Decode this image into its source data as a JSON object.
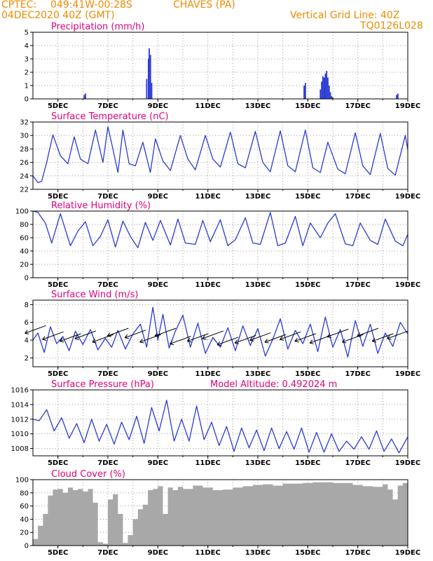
{
  "header": {
    "source": "CPTEC:",
    "coords": "049:41W-00:28S",
    "station": "CHAVES (PA)",
    "init": "04DEC2020 40Z (GMT)",
    "vertical_grid": "Vertical Grid Line: 40Z",
    "code": "TQ0126L028"
  },
  "colors": {
    "header": "#ee8a00",
    "title": "#e0007a",
    "line": "#2a3bd6",
    "cloud": "#a8a8a8",
    "grid": "#9a9a9a"
  },
  "x_axis": {
    "start_day": 4,
    "end_day": 19,
    "tick_labels": [
      "5DEC",
      "7DEC",
      "9DEC",
      "11DEC",
      "13DEC",
      "15DEC",
      "17DEC",
      "19DEC"
    ],
    "tick_days": [
      5,
      7,
      9,
      11,
      13,
      15,
      17,
      19
    ]
  },
  "chart_data": [
    {
      "id": "precip",
      "type": "bar",
      "title": "Precipitation (mm/h)",
      "annotation": "",
      "ylim": [
        0,
        5
      ],
      "yticks": [
        0,
        1,
        2,
        3,
        4,
        5
      ],
      "x": [
        6.05,
        6.1,
        8.55,
        8.62,
        8.65,
        8.7,
        8.75,
        14.85,
        14.9,
        15.5,
        15.55,
        15.6,
        15.65,
        15.7,
        15.75,
        15.8,
        15.85,
        15.9,
        15.95,
        16.0,
        18.55,
        18.6
      ],
      "values": [
        0.3,
        0.4,
        1.5,
        3.0,
        3.8,
        3.3,
        1.2,
        1.0,
        1.2,
        0.7,
        1.3,
        1.7,
        1.6,
        1.9,
        2.1,
        1.6,
        1.0,
        0.5,
        0.2,
        0.1,
        0.3,
        0.4
      ]
    },
    {
      "id": "temp",
      "type": "line",
      "title": "Surface Temperature (nC)",
      "annotation": "",
      "ylim": [
        22,
        32
      ],
      "yticks": [
        22,
        24,
        26,
        28,
        30,
        32
      ],
      "x": [
        4.0,
        4.2,
        4.35,
        4.55,
        4.8,
        5.1,
        5.4,
        5.65,
        5.9,
        6.2,
        6.5,
        6.8,
        7.0,
        7.2,
        7.4,
        7.6,
        7.85,
        8.1,
        8.4,
        8.7,
        8.9,
        9.2,
        9.5,
        9.9,
        10.2,
        10.5,
        10.9,
        11.2,
        11.5,
        11.9,
        12.2,
        12.5,
        12.9,
        13.2,
        13.5,
        13.9,
        14.2,
        14.5,
        14.9,
        15.2,
        15.5,
        15.8,
        16.2,
        16.5,
        16.9,
        17.2,
        17.5,
        17.9,
        18.2,
        18.5,
        18.9,
        19.0
      ],
      "values": [
        24.0,
        23.0,
        23.2,
        26.0,
        30.1,
        27.0,
        25.8,
        29.8,
        26.5,
        25.8,
        30.8,
        26.0,
        31.3,
        28.0,
        24.5,
        30.8,
        25.8,
        25.5,
        29.0,
        24.5,
        29.5,
        26.2,
        24.8,
        30.0,
        26.5,
        24.9,
        30.0,
        26.5,
        25.3,
        30.5,
        25.8,
        25.2,
        30.6,
        26.0,
        24.6,
        30.7,
        25.5,
        24.6,
        30.8,
        25.2,
        24.5,
        29.0,
        25.0,
        24.3,
        30.4,
        25.5,
        24.2,
        30.3,
        25.1,
        24.1,
        30.0,
        27.9
      ]
    },
    {
      "id": "rh",
      "type": "line",
      "title": "Relative Humidity (%)",
      "annotation": "",
      "ylim": [
        0,
        100
      ],
      "yticks": [
        0,
        20,
        40,
        60,
        80,
        100
      ],
      "x": [
        4.0,
        4.2,
        4.5,
        4.75,
        5.1,
        5.5,
        5.8,
        6.1,
        6.4,
        6.7,
        7.0,
        7.3,
        7.6,
        7.9,
        8.2,
        8.5,
        8.8,
        9.1,
        9.5,
        9.8,
        10.1,
        10.5,
        10.8,
        11.1,
        11.5,
        11.8,
        12.1,
        12.5,
        12.8,
        13.1,
        13.5,
        13.8,
        14.1,
        14.5,
        14.8,
        15.1,
        15.5,
        15.8,
        16.1,
        16.5,
        16.8,
        17.1,
        17.5,
        17.8,
        18.1,
        18.5,
        18.8,
        19.0
      ],
      "values": [
        100,
        98,
        82,
        52,
        96,
        48,
        70,
        84,
        48,
        62,
        87,
        46,
        85,
        62,
        45,
        83,
        56,
        86,
        49,
        88,
        52,
        50,
        86,
        54,
        87,
        48,
        57,
        90,
        52,
        50,
        98,
        48,
        52,
        92,
        48,
        82,
        60,
        82,
        96,
        51,
        48,
        82,
        56,
        50,
        88,
        55,
        48,
        65
      ]
    },
    {
      "id": "wind",
      "type": "line",
      "title": "Surface Wind (m/s)",
      "annotation": "",
      "ylim": [
        1,
        8.5
      ],
      "yticks": [
        2,
        4,
        6,
        8
      ],
      "x": [
        4.0,
        4.2,
        4.45,
        4.7,
        4.95,
        5.2,
        5.45,
        5.7,
        6.0,
        6.3,
        6.6,
        6.9,
        7.15,
        7.4,
        7.7,
        8.0,
        8.3,
        8.55,
        8.8,
        9.0,
        9.2,
        9.45,
        9.7,
        10.0,
        10.3,
        10.6,
        10.9,
        11.2,
        11.5,
        11.8,
        12.1,
        12.4,
        12.7,
        13.0,
        13.3,
        13.6,
        13.9,
        14.2,
        14.5,
        14.8,
        15.1,
        15.4,
        15.7,
        16.0,
        16.3,
        16.6,
        16.9,
        17.2,
        17.5,
        17.8,
        18.1,
        18.4,
        18.7,
        19.0
      ],
      "values": [
        4.0,
        4.8,
        2.6,
        5.5,
        3.6,
        4.4,
        2.8,
        5.0,
        3.5,
        5.2,
        2.9,
        4.2,
        3.2,
        5.1,
        3.0,
        4.7,
        5.8,
        3.2,
        7.7,
        4.0,
        6.9,
        3.1,
        5.0,
        6.8,
        3.2,
        5.9,
        2.5,
        4.3,
        3.2,
        5.4,
        2.8,
        5.6,
        3.4,
        5.3,
        2.2,
        4.1,
        6.4,
        3.0,
        5.1,
        3.6,
        5.8,
        2.7,
        6.6,
        3.2,
        5.2,
        2.1,
        6.2,
        3.3,
        5.8,
        2.5,
        4.8,
        3.3,
        6.0,
        4.7
      ],
      "barbs_x": [
        4.1,
        4.8,
        5.5,
        6.1,
        6.8,
        7.4,
        8.1,
        8.7,
        9.3,
        9.9,
        10.6,
        11.2,
        11.8,
        12.5,
        13.1,
        13.7,
        14.3,
        14.9,
        15.5,
        16.2,
        16.8,
        17.4,
        18.0,
        18.6
      ],
      "barbs_v": [
        5.2,
        4.5,
        4.3,
        4.6,
        4.2,
        4.9,
        4.7,
        4.2,
        4.9,
        4.0,
        4.3,
        4.6,
        3.9,
        4.1,
        4.4,
        4.2,
        4.5,
        4.3,
        4.1,
        4.8,
        4.2,
        4.9,
        4.3,
        4.6
      ]
    },
    {
      "id": "pressure",
      "type": "line",
      "title": "Surface Pressure (hPa)",
      "annotation": "Model Altitude: 0.492024 m",
      "ylim": [
        1007,
        1016
      ],
      "yticks": [
        1008,
        1010,
        1012,
        1014,
        1016
      ],
      "x": [
        4.0,
        4.25,
        4.55,
        4.85,
        5.15,
        5.45,
        5.75,
        6.05,
        6.35,
        6.65,
        6.95,
        7.25,
        7.55,
        7.85,
        8.15,
        8.45,
        8.75,
        9.05,
        9.35,
        9.65,
        9.95,
        10.25,
        10.55,
        10.85,
        11.15,
        11.45,
        11.75,
        12.05,
        12.35,
        12.65,
        12.95,
        13.25,
        13.55,
        13.85,
        14.15,
        14.45,
        14.75,
        15.05,
        15.35,
        15.65,
        15.95,
        16.25,
        16.55,
        16.85,
        17.15,
        17.45,
        17.75,
        18.05,
        18.35,
        18.65,
        19.0
      ],
      "values": [
        1012.0,
        1011.8,
        1013.3,
        1010.4,
        1012.2,
        1009.4,
        1011.4,
        1008.8,
        1012.0,
        1009.0,
        1011.3,
        1008.6,
        1011.6,
        1009.2,
        1012.4,
        1008.7,
        1013.6,
        1010.4,
        1014.6,
        1009.0,
        1012.0,
        1009.0,
        1013.8,
        1009.2,
        1011.6,
        1008.4,
        1011.0,
        1007.6,
        1010.8,
        1008.1,
        1010.5,
        1007.7,
        1010.8,
        1008.0,
        1010.3,
        1007.9,
        1010.8,
        1007.5,
        1010.2,
        1007.5,
        1010.0,
        1007.6,
        1009.0,
        1007.9,
        1009.6,
        1007.9,
        1010.4,
        1007.6,
        1009.3,
        1007.4,
        1009.6
      ]
    },
    {
      "id": "cloud",
      "type": "area",
      "title": "Cloud Cover (%)",
      "annotation": "",
      "ylim": [
        0,
        100
      ],
      "yticks": [
        0,
        20,
        40,
        60,
        80,
        100
      ],
      "x": [
        4.0,
        4.2,
        4.4,
        4.6,
        4.8,
        5.0,
        5.2,
        5.4,
        5.6,
        5.8,
        6.0,
        6.2,
        6.4,
        6.6,
        6.8,
        7.0,
        7.2,
        7.4,
        7.6,
        7.8,
        8.0,
        8.2,
        8.4,
        8.6,
        8.8,
        9.0,
        9.2,
        9.4,
        9.6,
        9.8,
        10.0,
        10.4,
        10.8,
        11.2,
        11.6,
        12.0,
        12.4,
        12.8,
        13.2,
        13.6,
        14.0,
        14.4,
        14.8,
        15.2,
        15.6,
        16.0,
        16.4,
        16.8,
        17.2,
        17.6,
        18.0,
        18.2,
        18.4,
        18.6,
        18.8,
        19.0
      ],
      "values": [
        10,
        30,
        48,
        76,
        85,
        86,
        80,
        88,
        84,
        86,
        82,
        86,
        65,
        5,
        3,
        70,
        78,
        48,
        4,
        16,
        40,
        55,
        62,
        84,
        86,
        90,
        48,
        88,
        84,
        89,
        86,
        91,
        88,
        84,
        85,
        88,
        90,
        92,
        93,
        91,
        94,
        94,
        95,
        96,
        96,
        95,
        95,
        92,
        90,
        89,
        93,
        85,
        70,
        91,
        95,
        92
      ]
    }
  ]
}
